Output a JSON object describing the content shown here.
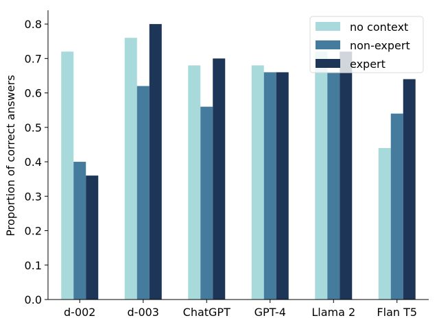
{
  "chart_data": {
    "type": "bar",
    "title": "",
    "xlabel": "",
    "ylabel": "Proportion of correct answers",
    "categories": [
      "d-002",
      "d-003",
      "ChatGPT",
      "GPT-4",
      "Llama 2",
      "Flan T5"
    ],
    "series": [
      {
        "name": "no context",
        "color": "#a8dadc",
        "values": [
          0.72,
          0.76,
          0.68,
          0.68,
          0.72,
          0.44
        ]
      },
      {
        "name": "non-expert",
        "color": "#457b9d",
        "values": [
          0.4,
          0.62,
          0.56,
          0.66,
          0.66,
          0.54
        ]
      },
      {
        "name": "expert",
        "color": "#1d3557",
        "values": [
          0.36,
          0.8,
          0.7,
          0.66,
          0.72,
          0.64
        ]
      }
    ],
    "ylim": [
      0,
      0.84
    ],
    "yticks": [
      "0.0",
      "0.1",
      "0.2",
      "0.3",
      "0.4",
      "0.5",
      "0.6",
      "0.7",
      "0.8"
    ],
    "grid": false,
    "legend": "top-right"
  }
}
